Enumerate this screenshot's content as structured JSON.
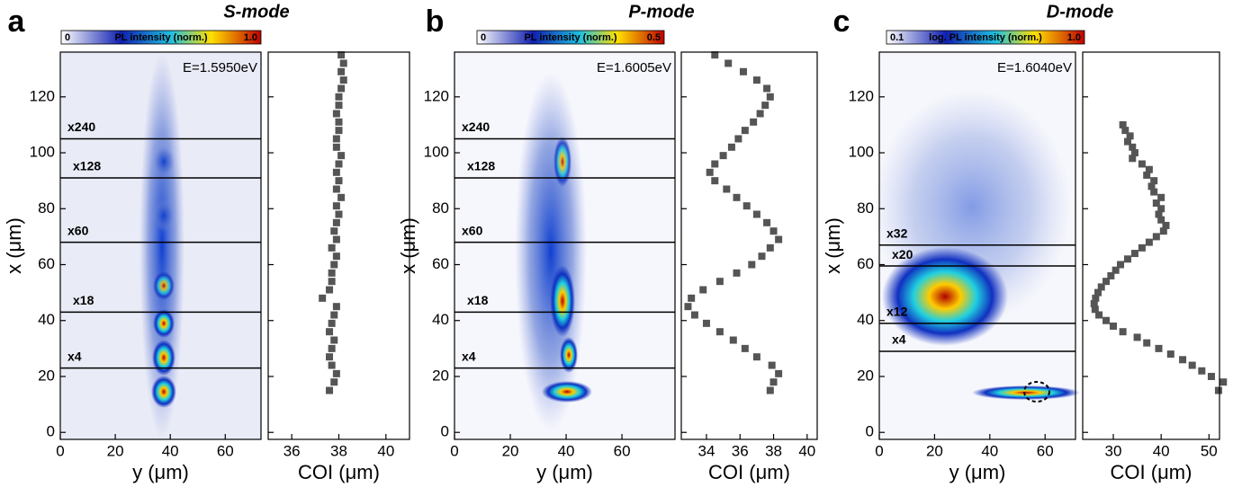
{
  "chart_data": [
    {
      "type": "heatmap",
      "panel": "a",
      "title": "S-mode",
      "annotation": "E=1.5950eV",
      "colorbar": {
        "label": "PL intensity (norm.)",
        "ticks": [
          0,
          {
            "value": 1,
            "label": "1.0"
          }
        ]
      },
      "xlabel": "y (μm)",
      "ylabel": "x (μm)",
      "xlim": [
        0,
        73
      ],
      "xticks": [
        0,
        20,
        40,
        60
      ],
      "ylim": [
        -2.5,
        136
      ],
      "yticks": [
        0,
        20,
        40,
        60,
        80,
        100,
        120
      ],
      "lines": [
        {
          "y": 105,
          "label": "x240"
        },
        {
          "y": 91,
          "label": "x128"
        },
        {
          "y": 68,
          "label": "x60"
        },
        {
          "y": 43,
          "label": "x18"
        },
        {
          "y": 23,
          "label": "x4"
        }
      ]
    },
    {
      "type": "scatter",
      "xlabel": "COI (μm)",
      "xlim": [
        35,
        41
      ],
      "xticks": [
        36,
        38,
        40
      ],
      "ylim": [
        -2.5,
        136
      ],
      "yticks": [
        0,
        20,
        40,
        60,
        80,
        100,
        120
      ],
      "color": "#555555",
      "x": [
        37.6,
        37.8,
        37.9,
        37.7,
        37.6,
        37.7,
        37.8,
        37.6,
        37.7,
        37.8,
        37.9,
        37.3,
        37.6,
        37.7,
        37.7,
        37.8,
        37.9,
        37.7,
        37.9,
        37.8,
        37.9,
        38.0,
        37.9,
        38.1,
        37.9,
        38.0,
        37.9,
        38.0,
        38.1,
        37.9,
        37.9,
        38.0,
        38.0,
        37.9,
        38.0,
        38.0,
        38.1,
        38.2,
        38.1,
        38.2,
        38.1
      ],
      "y": [
        15,
        18,
        21,
        24,
        27,
        30,
        33,
        36,
        39,
        42,
        45,
        48,
        51,
        54,
        57,
        60,
        63,
        66,
        69,
        72,
        75,
        78,
        81,
        84,
        87,
        90,
        93,
        96,
        99,
        102,
        105,
        108,
        111,
        114,
        117,
        120,
        123,
        126,
        129,
        132,
        135
      ]
    },
    {
      "type": "heatmap",
      "panel": "b",
      "title": "P-mode",
      "annotation": "E=1.6005eV",
      "colorbar": {
        "label": "PL intensity (norm.)",
        "ticks": [
          0,
          0.5
        ]
      },
      "xlabel": "y (μm)",
      "ylabel": "x (μm)",
      "xlim": [
        0,
        79
      ],
      "xticks": [
        0,
        20,
        40,
        60
      ],
      "ylim": [
        -2.5,
        136
      ],
      "yticks": [
        0,
        20,
        40,
        60,
        80,
        100,
        120
      ],
      "lines": [
        {
          "y": 105,
          "label": "x240"
        },
        {
          "y": 91,
          "label": "x128"
        },
        {
          "y": 68,
          "label": "x60"
        },
        {
          "y": 43,
          "label": "x18"
        },
        {
          "y": 23,
          "label": "x4"
        }
      ]
    },
    {
      "type": "scatter",
      "xlabel": "COI (μm)",
      "xlim": [
        32.5,
        40.6
      ],
      "xticks": [
        34,
        36,
        38,
        40
      ],
      "ylim": [
        -2.5,
        136
      ],
      "yticks": [
        0,
        20,
        40,
        60,
        80,
        100,
        120
      ],
      "color": "#555555",
      "x": [
        37.8,
        38.0,
        38.3,
        37.9,
        37.0,
        36.3,
        35.6,
        34.8,
        34.0,
        33.3,
        32.9,
        33.1,
        33.8,
        34.8,
        35.8,
        36.7,
        37.3,
        37.8,
        38.3,
        38.0,
        37.6,
        37.0,
        36.4,
        35.8,
        35.2,
        34.5,
        34.2,
        34.5,
        35.0,
        35.5,
        35.9,
        36.3,
        36.8,
        37.2,
        37.5,
        37.8,
        37.6,
        37.0,
        36.2,
        35.3,
        34.5
      ],
      "y": [
        15,
        18,
        21,
        24,
        27,
        30,
        33,
        36,
        39,
        42,
        45,
        48,
        51,
        54,
        57,
        60,
        63,
        66,
        69,
        72,
        75,
        78,
        81,
        84,
        87,
        90,
        93,
        96,
        99,
        102,
        105,
        108,
        111,
        114,
        117,
        120,
        123,
        126,
        129,
        132,
        135
      ]
    },
    {
      "type": "heatmap",
      "panel": "c",
      "title": "D-mode",
      "annotation": "E=1.6040eV",
      "colorbar": {
        "label": "log. PL intensity (norm.)",
        "ticks": [
          0.1,
          {
            "value": 1,
            "label": "1.0"
          }
        ]
      },
      "xlabel": "y (μm)",
      "ylabel": "x (μm)",
      "xlim": [
        0,
        71
      ],
      "xticks": [
        0,
        20,
        40,
        60
      ],
      "ylim": [
        -2.5,
        136
      ],
      "yticks": [
        0,
        20,
        40,
        60,
        80,
        100,
        120
      ],
      "lines": [
        {
          "y": 67,
          "label": "x32"
        },
        {
          "y": 59.5,
          "label": "x20"
        },
        {
          "y": 39,
          "label": "x12"
        },
        {
          "y": 29,
          "label": "x4"
        }
      ]
    },
    {
      "type": "scatter",
      "xlabel": "COI (μm)",
      "xlim": [
        23.6,
        52.2
      ],
      "xticks": [
        30,
        40,
        50
      ],
      "ylim": [
        -2.5,
        136
      ],
      "yticks": [
        0,
        20,
        40,
        60,
        80,
        100,
        120
      ],
      "color": "#555555",
      "x": [
        52,
        53,
        50.5,
        48.5,
        46.5,
        44.5,
        42,
        39.5,
        37,
        35,
        32,
        30,
        28.5,
        27,
        26.2,
        26,
        26.3,
        26.8,
        27.5,
        28.5,
        29.5,
        30.5,
        31.5,
        33,
        34.5,
        36,
        37.5,
        39,
        40.5,
        41,
        40,
        39.5,
        40,
        39,
        40,
        38.5,
        38,
        38.5,
        37,
        37.5,
        36,
        34,
        34.5,
        34,
        33,
        33.5,
        32.5,
        32
      ],
      "y": [
        15,
        18,
        20,
        22,
        24,
        26,
        28,
        30,
        32,
        34,
        36,
        38,
        40,
        42,
        44,
        46,
        48,
        50,
        52,
        54,
        56,
        58,
        60,
        62,
        64,
        66,
        68,
        70,
        72,
        74,
        76,
        78,
        80,
        82,
        84,
        86,
        88,
        90,
        92,
        94,
        96,
        98,
        100,
        102,
        104,
        106,
        108,
        110
      ]
    }
  ]
}
